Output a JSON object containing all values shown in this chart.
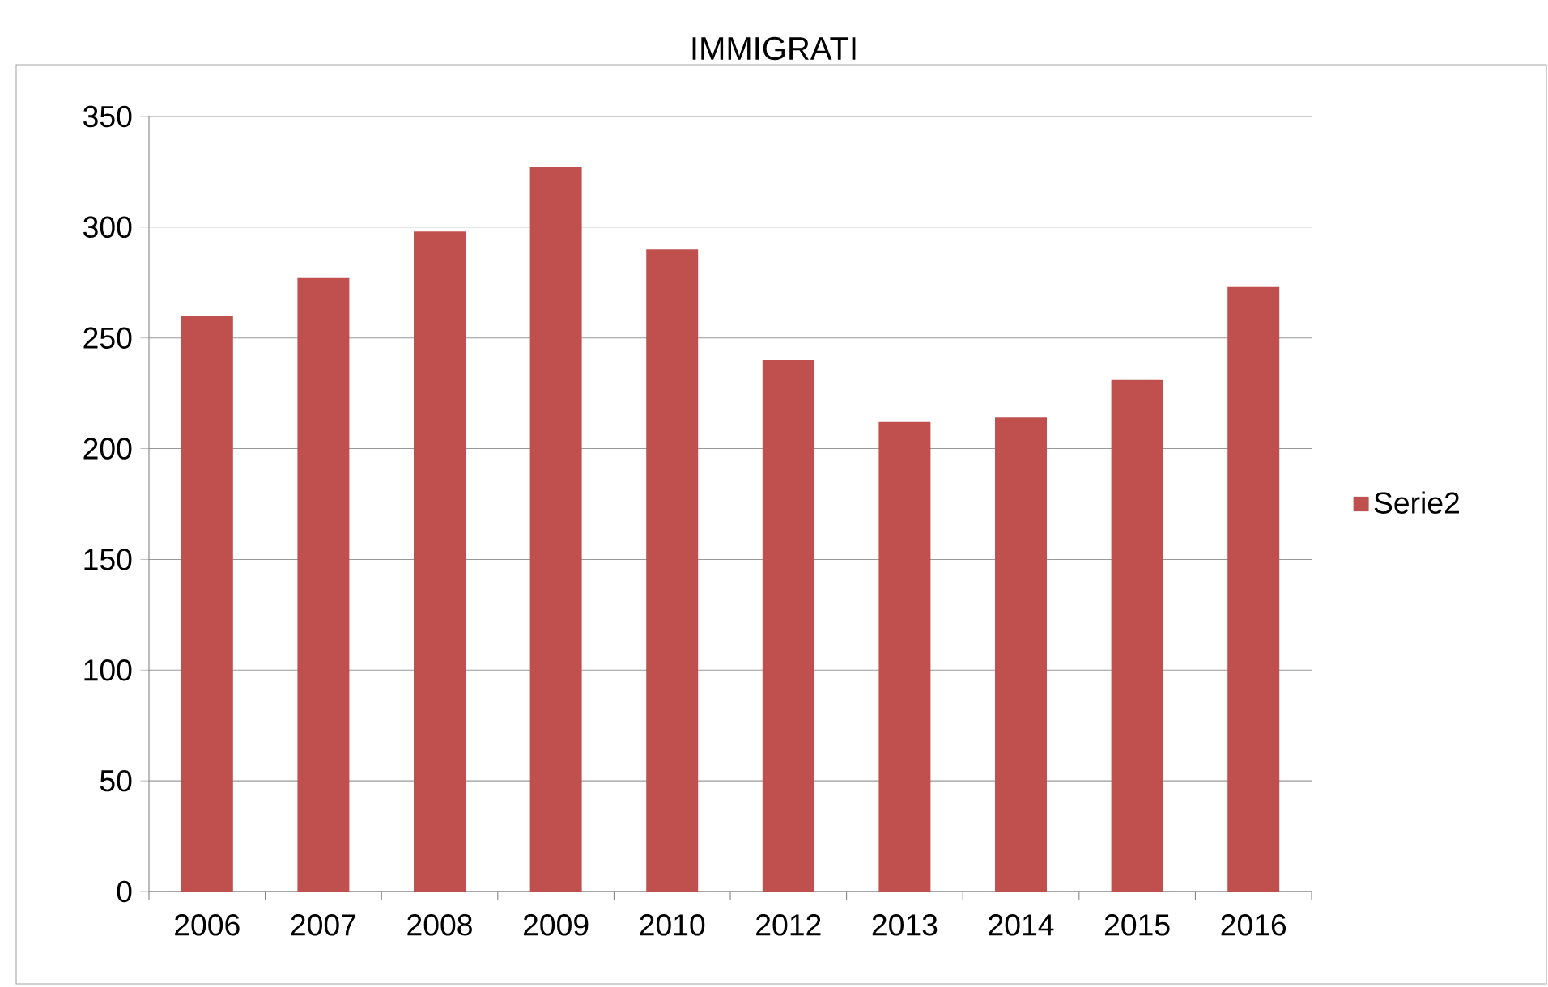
{
  "chart_data": {
    "type": "bar",
    "title": "IMMIGRATI",
    "categories": [
      "2006",
      "2007",
      "2008",
      "2009",
      "2010",
      "2012",
      "2013",
      "2014",
      "2015",
      "2016"
    ],
    "series": [
      {
        "name": "Serie2",
        "color": "#c0504d",
        "values": [
          260,
          277,
          298,
          327,
          290,
          240,
          212,
          214,
          231,
          273
        ]
      }
    ],
    "ylim": [
      0,
      350
    ],
    "yticks": [
      0,
      50,
      100,
      150,
      200,
      250,
      300,
      350
    ],
    "grid": "y",
    "legend": "right"
  }
}
